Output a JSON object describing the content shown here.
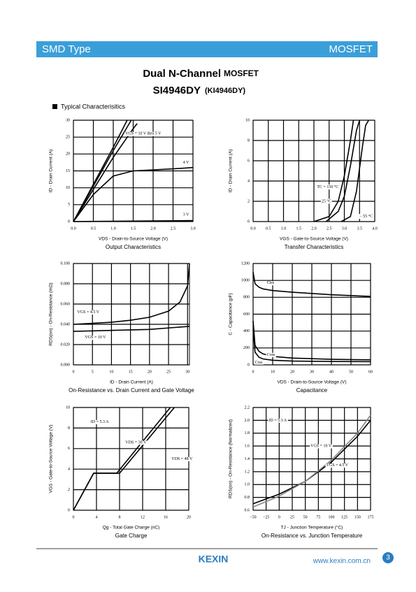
{
  "header": {
    "left": "SMD Type",
    "right": "MOSFET"
  },
  "title": {
    "line1": "Dual N-Channel",
    "line1b": "MOSFET",
    "part": "SI4946DY",
    "alt": "(KI4946DY)"
  },
  "section": "Typical  Characterisitics",
  "charts": [
    {
      "type": "line",
      "title": "Output Characteristics",
      "xlabel": "VDS - Drain-to-Source Voltage (V)",
      "ylabel": "ID - Drain Current (A)",
      "xlim": [
        0,
        3
      ],
      "xticks": [
        {
          "value": 0,
          "label": "0.0"
        },
        {
          "value": 0.5,
          "label": "0.5"
        },
        {
          "value": 1,
          "label": "1.0"
        },
        {
          "value": 1.5,
          "label": "1.5"
        },
        {
          "value": 2,
          "label": "2.0"
        },
        {
          "value": 2.5,
          "label": "2.5"
        },
        {
          "value": 3,
          "label": "3.0"
        }
      ],
      "ylim": [
        0,
        30
      ],
      "yticks": [
        0,
        5,
        10,
        15,
        20,
        25,
        30
      ],
      "grid": true,
      "series": [
        {
          "color": "#000000",
          "x": [
            0,
            0.5,
            1.0,
            1.35
          ],
          "values": [
            0,
            11,
            22,
            30
          ]
        },
        {
          "color": "#000000",
          "x": [
            0,
            0.5,
            1.0,
            1.45
          ],
          "values": [
            0,
            10.5,
            21,
            30
          ]
        },
        {
          "color": "#000000",
          "x": [
            0,
            0.5,
            1.0,
            1.5,
            1.6
          ],
          "values": [
            0,
            9.5,
            19,
            27.5,
            29
          ]
        },
        {
          "color": "#000000",
          "x": [
            0,
            0.5,
            1.0,
            1.5,
            2.0,
            2.5,
            3.0
          ],
          "values": [
            0,
            8,
            13.5,
            15,
            15.3,
            15.6,
            16
          ]
        },
        {
          "color": "#000000",
          "x": [
            0,
            3
          ],
          "values": [
            0,
            0.3
          ]
        }
      ],
      "annotations": [
        "VGS = 10 V thru 5 V",
        "4 V",
        "3 V"
      ]
    },
    {
      "type": "line",
      "title": "Transfer Characteristics",
      "xlabel": "VGS - Gate-to-Source Voltage (V)",
      "ylabel": "ID - Drain Current (A)",
      "xlim": [
        0,
        4
      ],
      "xticks": [
        {
          "value": 0,
          "label": "0.0"
        },
        {
          "value": 0.5,
          "label": "0.5"
        },
        {
          "value": 1,
          "label": "1.0"
        },
        {
          "value": 1.5,
          "label": "1.5"
        },
        {
          "value": 2,
          "label": "2.0"
        },
        {
          "value": 2.5,
          "label": "2.5"
        },
        {
          "value": 3,
          "label": "3.0"
        },
        {
          "value": 3.5,
          "label": "3.5"
        },
        {
          "value": 4,
          "label": "4.0"
        }
      ],
      "ylim": [
        0,
        10
      ],
      "yticks": [
        0,
        2,
        4,
        6,
        8,
        10
      ],
      "grid": true,
      "series": [
        {
          "color": "#000000",
          "x": [
            2.0,
            2.5,
            2.8,
            3.0,
            3.2,
            3.3
          ],
          "values": [
            0,
            0.5,
            2,
            4.5,
            8,
            10
          ]
        },
        {
          "color": "#000000",
          "x": [
            2.4,
            2.8,
            3.0,
            3.2,
            3.4,
            3.5
          ],
          "values": [
            0,
            1,
            2.5,
            5.5,
            9,
            10
          ]
        },
        {
          "color": "#000000",
          "x": [
            2.9,
            3.2,
            3.4,
            3.6,
            3.7,
            3.8
          ],
          "values": [
            0,
            0.5,
            3,
            7.5,
            9.5,
            10
          ]
        }
      ],
      "annotations": [
        "TC = 150 °C",
        "25 °C",
        "− 55 °C"
      ]
    },
    {
      "type": "line",
      "title": "On-Resistance vs. Drain Current and Gate Voltage",
      "xlabel": "ID - Drain Current (A)",
      "ylabel": "RDS(on) - On-Resistance (mΩ)",
      "xlim": [
        0,
        30.5
      ],
      "xticks": [
        0,
        5,
        10,
        15,
        20,
        25,
        30
      ],
      "ylim": [
        0,
        0.1
      ],
      "yticks": [
        {
          "value": 0,
          "label": "0.000"
        },
        {
          "value": 0.02,
          "label": "0.020"
        },
        {
          "value": 0.04,
          "label": "0.040"
        },
        {
          "value": 0.06,
          "label": "0.060"
        },
        {
          "value": 0.08,
          "label": "0.080"
        },
        {
          "value": 0.1,
          "label": "0.100"
        }
      ],
      "grid": true,
      "series": [
        {
          "color": "#000000",
          "x": [
            0,
            5,
            10,
            15,
            20,
            25,
            28,
            30,
            30.5
          ],
          "values": [
            0.04,
            0.041,
            0.042,
            0.044,
            0.047,
            0.053,
            0.062,
            0.078,
            0.1
          ]
        },
        {
          "color": "#000000",
          "x": [
            0,
            10,
            20,
            30.5
          ],
          "values": [
            0.033,
            0.034,
            0.035,
            0.038
          ]
        }
      ],
      "annotations": [
        "VGS = 4.5 V",
        "VGS = 10 V"
      ]
    },
    {
      "type": "line",
      "title": "Capacitance",
      "xlabel": "VDS - Drain-to-Source Voltage (V)",
      "ylabel": "C - Capacitance (pF)",
      "xlim": [
        0,
        60
      ],
      "xticks": [
        0,
        10,
        20,
        30,
        40,
        50,
        60
      ],
      "ylim": [
        0,
        1200
      ],
      "yticks": [
        0,
        200,
        400,
        600,
        800,
        1000,
        1200
      ],
      "grid": true,
      "series": [
        {
          "color": "#000000",
          "x": [
            0,
            1,
            3,
            5,
            10,
            20,
            40,
            60
          ],
          "values": [
            1100,
            960,
            920,
            900,
            880,
            860,
            830,
            810
          ]
        },
        {
          "color": "#000000",
          "x": [
            0,
            1,
            3,
            5,
            10,
            20,
            40,
            60
          ],
          "values": [
            520,
            230,
            160,
            130,
            100,
            80,
            65,
            60
          ]
        },
        {
          "color": "#000000",
          "x": [
            0,
            1,
            3,
            5,
            10,
            20,
            40,
            60
          ],
          "values": [
            420,
            150,
            90,
            70,
            55,
            45,
            40,
            38
          ]
        }
      ],
      "annotations": [
        "Ciss",
        "Coss",
        "Crss"
      ]
    },
    {
      "type": "line",
      "title": "Gate Charge",
      "xlabel": "Qg - Total Gate Charge (nC)",
      "ylabel": "VGS - Gate-to-Source Voltage (V)",
      "xlim": [
        0,
        20
      ],
      "xticks": [
        0,
        4,
        8,
        12,
        16,
        20
      ],
      "ylim": [
        0,
        10
      ],
      "yticks": [
        0,
        2,
        4,
        6,
        8,
        10
      ],
      "grid": true,
      "series": [
        {
          "color": "#000000",
          "x": [
            0,
            3.5,
            7.5,
            16.8
          ],
          "values": [
            0,
            3.6,
            3.6,
            10
          ]
        },
        {
          "color": "#000000",
          "x": [
            0,
            3.5,
            8,
            17.5
          ],
          "values": [
            0,
            3.6,
            3.6,
            10
          ]
        }
      ],
      "annotations": [
        "ID = 5.3 A",
        "VDS = 30 V",
        "VDS = 48 V"
      ]
    },
    {
      "type": "line",
      "title": "On-Resistance vs. Junction Temperature",
      "xlabel": "TJ - Junction Temperature (°C)",
      "ylabel": "RDS(on) - On-Resistance (Normalized)",
      "xlim": [
        -50,
        175
      ],
      "xticks": [
        {
          "value": -50,
          "label": "−50"
        },
        {
          "value": -25,
          "label": "−25"
        },
        0,
        25,
        50,
        75,
        100,
        125,
        150,
        175
      ],
      "ylim": [
        0.6,
        2.2
      ],
      "yticks": [
        0.6,
        0.8,
        {
          "value": 1,
          "label": "1.0"
        },
        1.2,
        1.4,
        1.6,
        1.8,
        {
          "value": 2,
          "label": "2.0"
        },
        2.2
      ],
      "grid": true,
      "series": [
        {
          "color": "#000000",
          "x": [
            -50,
            0,
            50,
            100,
            150,
            175
          ],
          "values": [
            0.7,
            0.85,
            1.05,
            1.35,
            1.75,
            2.0
          ]
        },
        {
          "color": "#888888",
          "x": [
            -50,
            0,
            50,
            100,
            150,
            175
          ],
          "values": [
            0.65,
            0.82,
            1.05,
            1.38,
            1.8,
            2.08
          ]
        }
      ],
      "annotations": [
        "ID = 5.3 A",
        "VGS = 10 V",
        "VGS = 4.5 V"
      ]
    }
  ],
  "footer": {
    "logo": "KEXIN",
    "url": "www.kexin.com.cn",
    "page": "3"
  }
}
